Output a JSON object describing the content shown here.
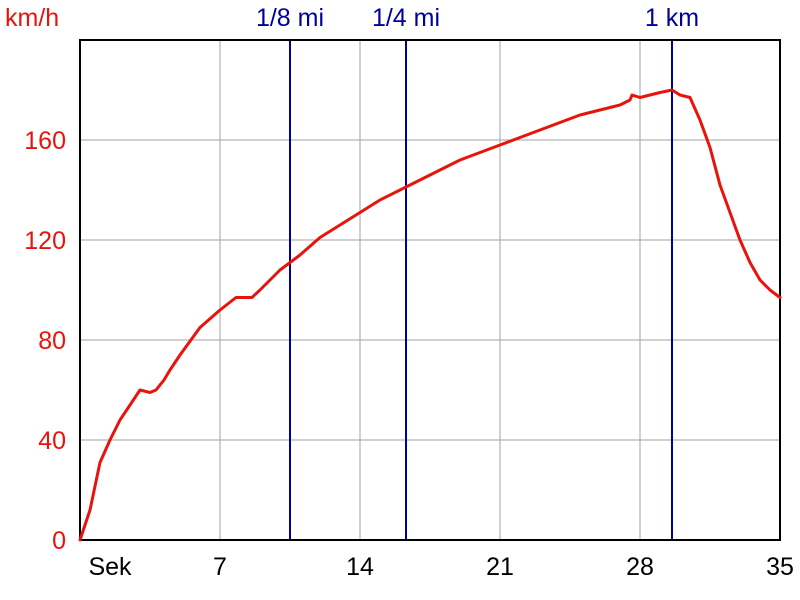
{
  "chart_data": {
    "type": "line",
    "ylabel": "km/h",
    "xlabel": "Sek",
    "xlim": [
      0,
      35
    ],
    "ylim": [
      0,
      200
    ],
    "x_ticks": [
      {
        "value": 0,
        "label": "Sek"
      },
      {
        "value": 7,
        "label": "7"
      },
      {
        "value": 14,
        "label": "14"
      },
      {
        "value": 21,
        "label": "21"
      },
      {
        "value": 28,
        "label": "28"
      },
      {
        "value": 35,
        "label": "35"
      }
    ],
    "y_ticks": [
      {
        "value": 0,
        "label": "0"
      },
      {
        "value": 40,
        "label": "40"
      },
      {
        "value": 80,
        "label": "80"
      },
      {
        "value": 120,
        "label": "120"
      },
      {
        "value": 160,
        "label": "160"
      }
    ],
    "grid": true,
    "markers": [
      {
        "label": "1/8 mi",
        "x": 10.5
      },
      {
        "label": "1/4 mi",
        "x": 16.3
      },
      {
        "label": "1 km",
        "x": 29.6
      }
    ],
    "colors": {
      "series": "#e8140c",
      "markers": "#00009e",
      "grid": "#a0a0a0",
      "axis_labels": "#e8140c"
    },
    "series": [
      {
        "x": [
          0,
          0.5,
          1,
          1.5,
          2,
          2.5,
          3,
          3.5,
          3.8,
          4.2,
          4.5,
          5,
          6,
          7,
          7.8,
          8.3,
          8.6,
          9,
          10,
          11,
          12,
          13,
          14,
          15,
          16,
          17,
          18,
          19,
          20,
          21,
          22,
          23,
          24,
          25,
          26,
          27,
          27.5,
          27.6,
          28,
          29,
          29.6,
          30,
          30.5,
          31,
          31.5,
          32,
          32.5,
          33,
          33.5,
          34,
          34.5,
          35
        ],
        "values": [
          0,
          12,
          31,
          40,
          48,
          54,
          60,
          59,
          60,
          64,
          68,
          74,
          85,
          92,
          97,
          97,
          97,
          100,
          108,
          114,
          121,
          126,
          131,
          136,
          140,
          144,
          148,
          152,
          155,
          158,
          161,
          164,
          167,
          170,
          172,
          174,
          176,
          178,
          177,
          179,
          180,
          178,
          177,
          168,
          157,
          142,
          131,
          120,
          111,
          104,
          100,
          97
        ]
      }
    ]
  }
}
